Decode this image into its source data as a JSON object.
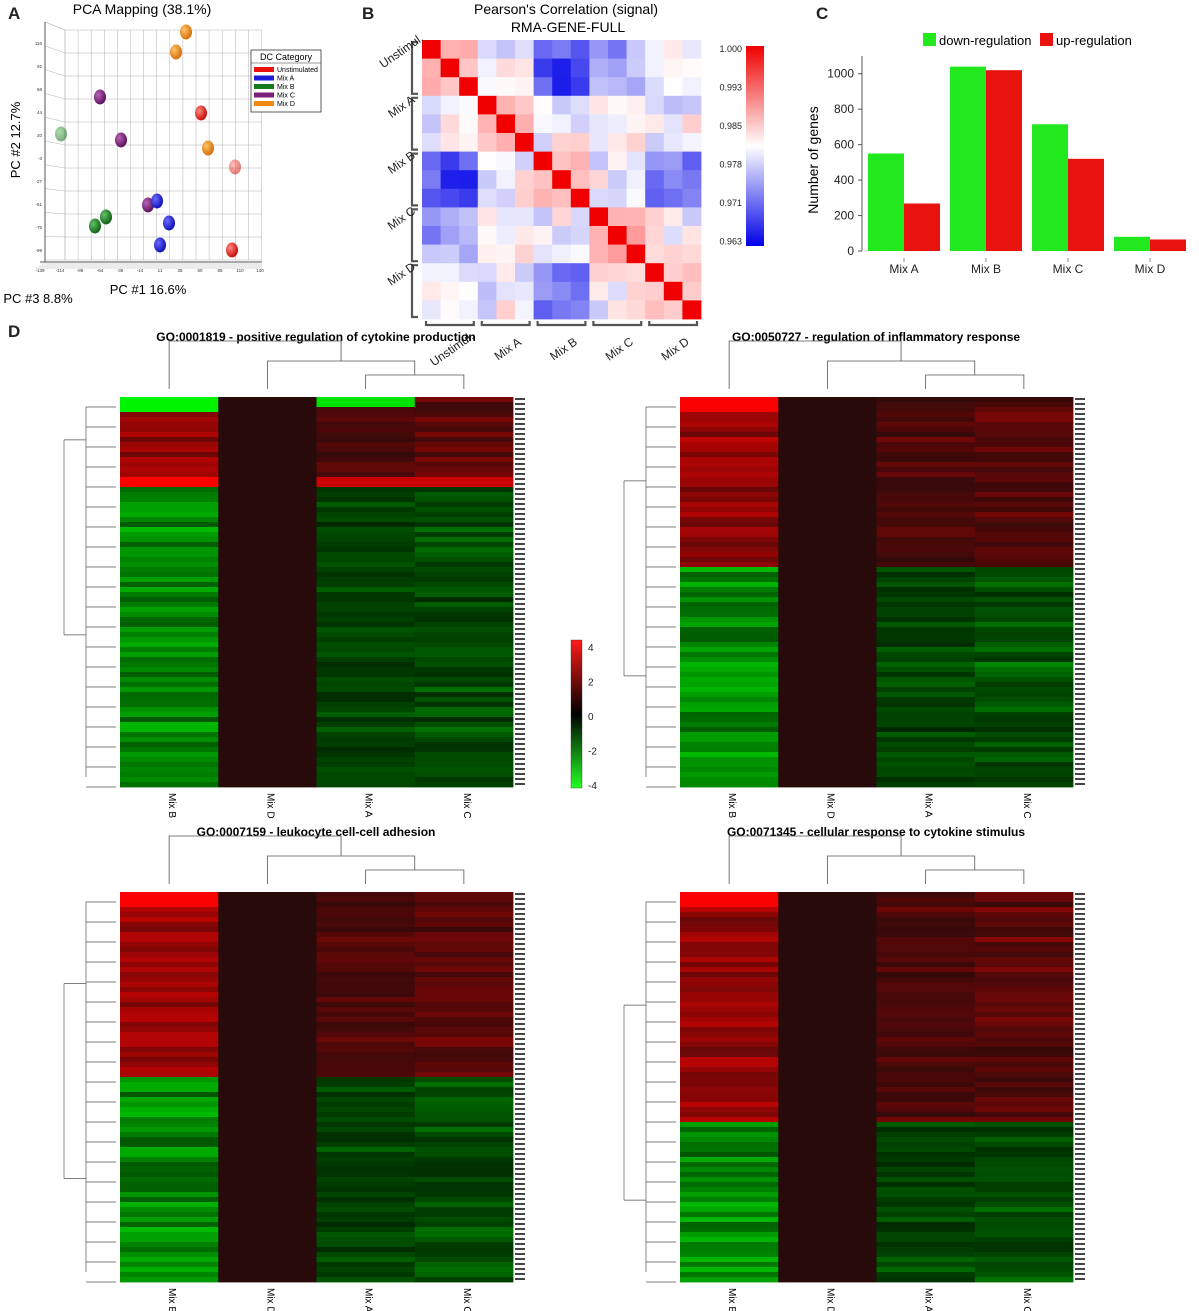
{
  "panel_letters": {
    "a": "A",
    "b": "B",
    "c": "C",
    "d": "D"
  },
  "panel_a": {
    "title": "PCA Mapping (38.1%)",
    "ylabel": "PC #2 12.7%",
    "xlabel": "PC #1 16.6%",
    "zlabel": "PC #3 8.8%",
    "legend_title": "DC Category",
    "legend": [
      {
        "label": "Unstimulated",
        "color": "#e8130f"
      },
      {
        "label": "Mix A",
        "color": "#1b1bd8"
      },
      {
        "label": "Mix B",
        "color": "#177a1e"
      },
      {
        "label": "Mix C",
        "color": "#7b1d7b"
      },
      {
        "label": "Mix D",
        "color": "#f0890f"
      }
    ],
    "y_ticks": [
      "116",
      "92",
      "68",
      "44",
      "20",
      "-3",
      "-27",
      "-51",
      "-75",
      "-99"
    ],
    "x_ticks": [
      "-139",
      "-114",
      "-89",
      "-64",
      "-39",
      "-14",
      "11",
      "35",
      "60",
      "85",
      "110",
      "140"
    ]
  },
  "panel_b": {
    "title": "Pearson's Correlation (signal)",
    "subtitle": "RMA-GENE-FULL",
    "groups": [
      "Unstimul.",
      "Mix A",
      "Mix B",
      "Mix C",
      "Mix D"
    ],
    "colorbar_ticks": [
      "1.000",
      "0.993",
      "0.985",
      "0.978",
      "0.971",
      "0.963"
    ]
  },
  "chart_data": [
    {
      "type": "bar",
      "panel": "C",
      "title": "",
      "xlabel": "",
      "ylabel": "Number of genes",
      "categories": [
        "Mix A",
        "Mix B",
        "Mix C",
        "Mix D"
      ],
      "series": [
        {
          "name": "down-regulation",
          "color": "#22e81e",
          "values": [
            550,
            1040,
            715,
            80
          ]
        },
        {
          "name": "up-regulation",
          "color": "#e8130f",
          "values": [
            268,
            1020,
            520,
            65
          ]
        }
      ],
      "ylim": [
        0,
        1100
      ],
      "yticks": [
        0,
        200,
        400,
        600,
        800,
        1000
      ],
      "legend_position": "top"
    }
  ],
  "panel_d": {
    "heatmaps": [
      {
        "title": "GO:0001819 - positive regulation of cytokine production",
        "columns": [
          "Mix B",
          "Mix D",
          "Mix A",
          "Mix C"
        ]
      },
      {
        "title": "GO:0050727 - regulation of inflammatory response",
        "columns": [
          "Mix B",
          "Mix D",
          "Mix A",
          "Mix C"
        ]
      },
      {
        "title": "GO:0007159 - leukocyte cell-cell adhesion",
        "columns": [
          "Mix B",
          "Mix D",
          "Mix A",
          "Mix C"
        ]
      },
      {
        "title": "GO:0071345 - cellular response to cytokine stimulus",
        "columns": [
          "Mix B",
          "Mix D",
          "Mix A",
          "Mix C"
        ]
      }
    ],
    "colorbar_ticks": [
      "4",
      "2",
      "0",
      "-2",
      "-4"
    ],
    "colors": {
      "up": "#ff1a1a",
      "zero": "#000000",
      "down": "#22ff22"
    }
  }
}
